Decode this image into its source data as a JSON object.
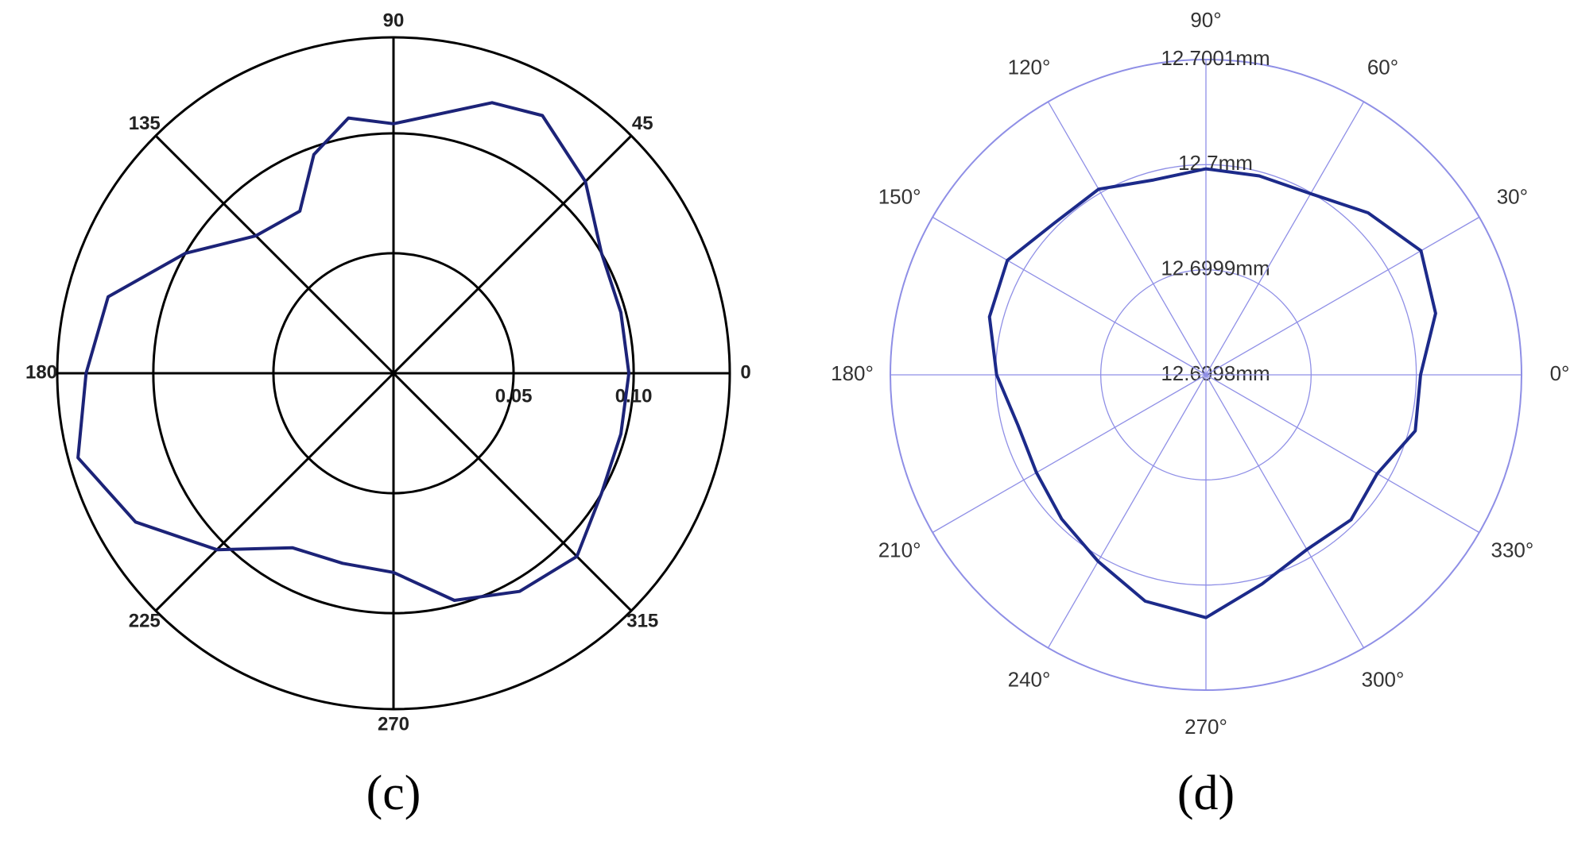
{
  "chart_data": [
    {
      "type": "polar",
      "caption": "(c)",
      "theta": [
        0,
        15,
        30,
        45,
        60,
        70,
        90,
        100,
        110,
        120,
        135,
        150,
        165,
        180,
        195,
        210,
        225,
        240,
        255,
        270,
        285,
        300,
        315,
        330,
        345
      ],
      "series": [
        {
          "color": "#1c2378",
          "values": [
            0.098,
            0.098,
            0.1,
            0.113,
            0.124,
            0.12,
            0.104,
            0.108,
            0.097,
            0.078,
            0.081,
            0.1,
            0.123,
            0.128,
            0.136,
            0.124,
            0.104,
            0.084,
            0.082,
            0.083,
            0.098,
            0.105,
            0.108,
            0.1,
            0.098
          ]
        }
      ],
      "rlim": [
        0,
        0.14
      ],
      "rticks": [
        0.05,
        {
          "value": 0.1,
          "label": "0.10"
        }
      ],
      "thetaticks": [
        0,
        45,
        90,
        135,
        180,
        225,
        270,
        315
      ],
      "grid": true,
      "grid_color": "#000000"
    },
    {
      "type": "polar",
      "caption": "(d)",
      "theta": [
        0,
        15,
        30,
        45,
        60,
        75,
        90,
        105,
        120,
        135,
        150,
        165,
        180,
        195,
        210,
        225,
        240,
        255,
        270,
        285,
        300,
        315,
        330,
        345
      ],
      "series": [
        {
          "color": "#1c2a8a",
          "values": [
            12.700004,
            12.700026,
            12.700036,
            12.700018,
            12.699999,
            12.699996,
            12.699996,
            12.699992,
            12.700004,
            12.700004,
            12.700018,
            12.700013,
            12.699999,
            12.699985,
            12.699986,
            12.699994,
            12.700005,
            12.700023,
            12.700031,
            12.700006,
            12.699992,
            12.699995,
            12.699988,
            12.700006
          ]
        }
      ],
      "rlim": [
        12.6998,
        12.7001
      ],
      "rticks": [
        {
          "value": 12.6998,
          "label": "12.6998mm"
        },
        {
          "value": 12.6999,
          "label": "12.6999mm"
        },
        {
          "value": 12.7,
          "label": "12.7mm"
        },
        {
          "value": 12.7001,
          "label": "12.7001mm"
        }
      ],
      "thetaticks": [
        {
          "value": 0,
          "label": "0°"
        },
        {
          "value": 30,
          "label": "30°"
        },
        {
          "value": 60,
          "label": "60°"
        },
        {
          "value": 90,
          "label": "90°"
        },
        {
          "value": 120,
          "label": "120°"
        },
        {
          "value": 150,
          "label": "150°"
        },
        {
          "value": 180,
          "label": "180°"
        },
        {
          "value": 210,
          "label": "210°"
        },
        {
          "value": 240,
          "label": "240°"
        },
        {
          "value": 270,
          "label": "270°"
        },
        {
          "value": 300,
          "label": "300°"
        },
        {
          "value": 330,
          "label": "330°"
        }
      ],
      "grid": true,
      "grid_color": "#8f8fe6"
    }
  ]
}
